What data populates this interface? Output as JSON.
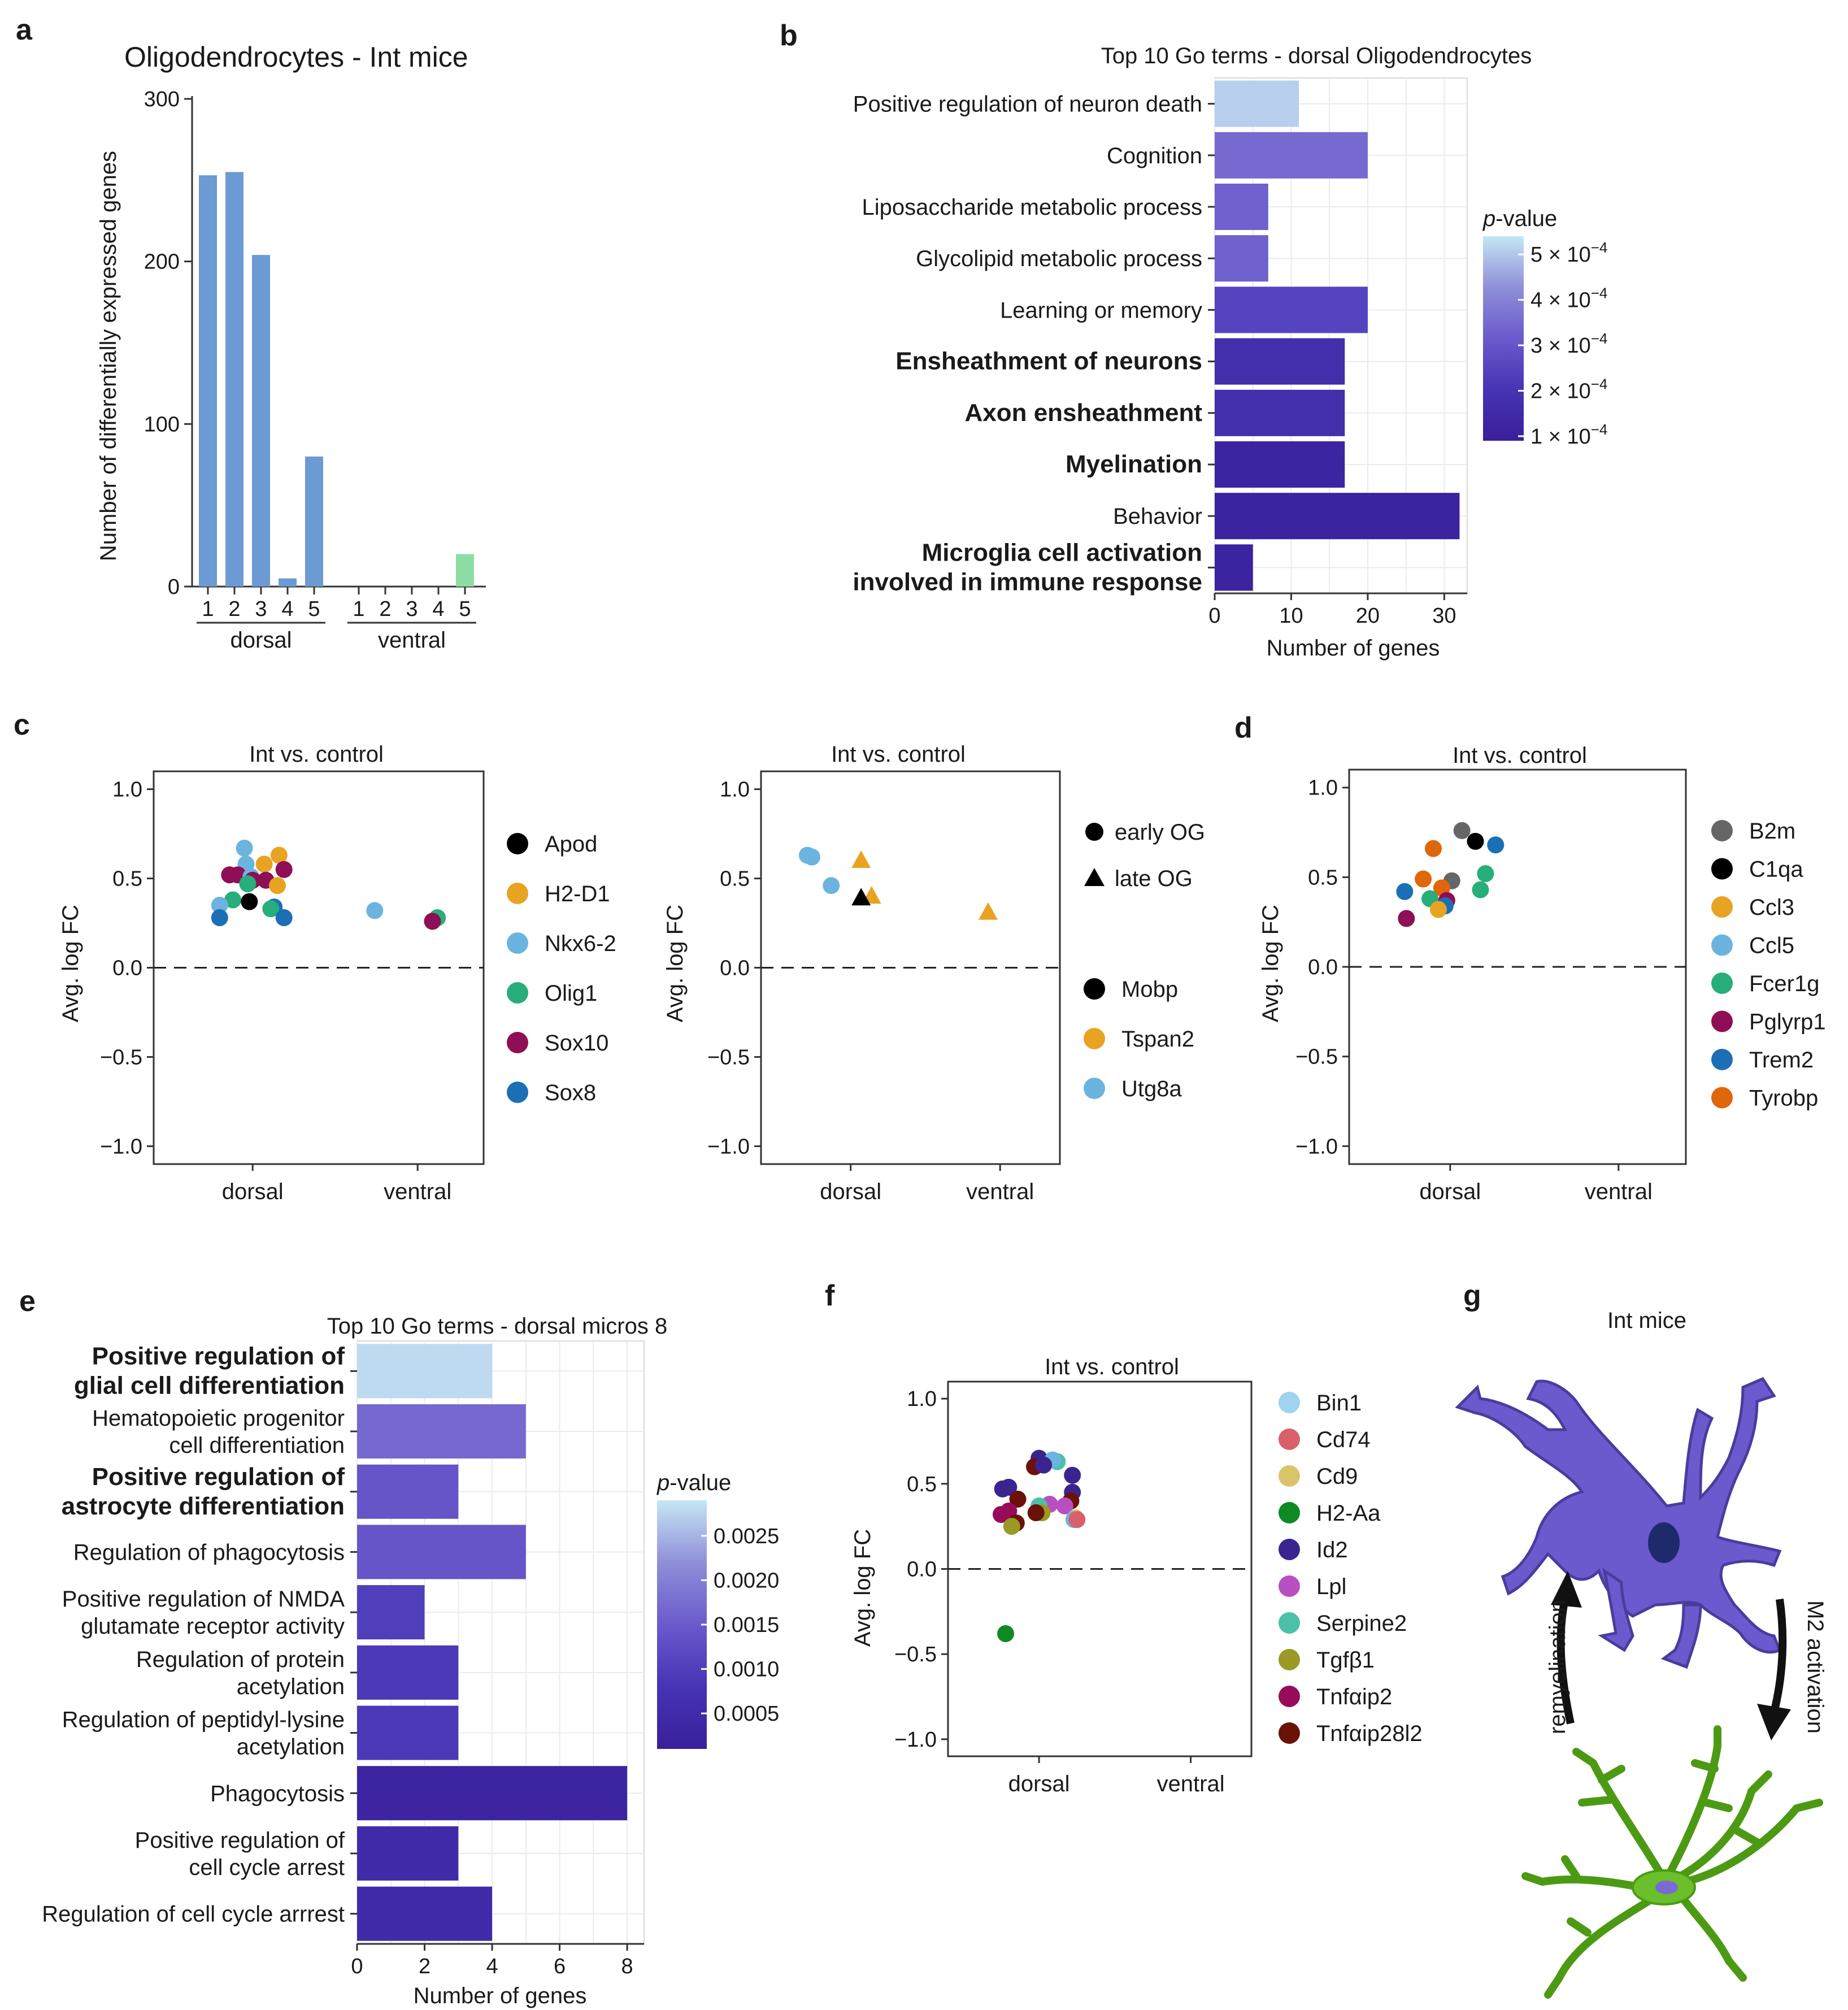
{
  "panel_letters": [
    "a",
    "b",
    "c",
    "d",
    "e",
    "f",
    "g"
  ],
  "chart_data": [
    {
      "id": "a",
      "type": "bar",
      "title": "Oligodendrocytes - Int mice",
      "ylabel": "Number of differentially expressed genes",
      "ylim": [
        0,
        300
      ],
      "yticks": [
        0,
        100,
        200,
        300
      ],
      "groups": [
        {
          "name": "dorsal",
          "categories": [
            "1",
            "2",
            "3",
            "4",
            "5"
          ],
          "values": [
            253,
            255,
            204,
            5,
            80
          ],
          "colors": [
            "#6b9bd2",
            "#6b9bd2",
            "#6b9bd2",
            "#6b9bd2",
            "#6b9bd2"
          ]
        },
        {
          "name": "ventral",
          "categories": [
            "1",
            "2",
            "3",
            "4",
            "5"
          ],
          "values": [
            0,
            0,
            0,
            0,
            20
          ],
          "colors": [
            "#6b9bd2",
            "#6b9bd2",
            "#6b9bd2",
            "#6b9bd2",
            "#8ddca4"
          ]
        }
      ]
    },
    {
      "id": "b",
      "type": "bar",
      "orientation": "horizontal",
      "title": "Top 10 Go terms - dorsal Oligodendrocytes",
      "xlabel": "Number of genes",
      "xlim": [
        0,
        33
      ],
      "xticks": [
        0,
        10,
        20,
        30
      ],
      "categories": [
        {
          "label": "Positive regulation of neuron death",
          "bold": false
        },
        {
          "label": "Cognition",
          "bold": false
        },
        {
          "label": "Liposaccharide metabolic process",
          "bold": false
        },
        {
          "label": "Glycolipid metabolic process",
          "bold": false
        },
        {
          "label": "Learning or memory",
          "bold": false
        },
        {
          "label": "Ensheathment of neurons",
          "bold": true
        },
        {
          "label": "Axon ensheathment",
          "bold": true
        },
        {
          "label": "Myelination",
          "bold": true
        },
        {
          "label": "Behavior",
          "bold": false
        },
        {
          "label": [
            "Microglia cell activation",
            "involved in immune response"
          ],
          "bold": true
        }
      ],
      "values": [
        11,
        20,
        7,
        7,
        20,
        17,
        17,
        17,
        32,
        5
      ],
      "pvalues": [
        0.00051,
        0.00035,
        0.00033,
        0.00033,
        0.00025,
        0.00017,
        0.00017,
        0.00012,
        0.00011,
        0.00011
      ],
      "colorbar": {
        "title": "p-value",
        "ticks": [
          "5",
          "4",
          "3",
          "2",
          "1"
        ],
        "tick_values": [
          0.0005,
          0.0004,
          0.0003,
          0.0002,
          0.0001
        ],
        "tick_suffix": "× 10",
        "exponent": "−4",
        "range": [
          9e-05,
          0.00054
        ]
      }
    },
    {
      "id": "c1",
      "type": "scatter",
      "title": "Int vs. control",
      "ylabel": "Avg. log FC",
      "ylim": [
        -1.1,
        1.1
      ],
      "yticks": [
        "1.0",
        "0.5",
        "0.0",
        "−0.5",
        "−1.0"
      ],
      "ytick_values": [
        1.0,
        0.5,
        0.0,
        -0.5,
        -1.0
      ],
      "categories": [
        "dorsal",
        "ventral"
      ],
      "legend": [
        {
          "label": "Apod",
          "color": "#000000"
        },
        {
          "label": "H2-D1",
          "color": "#e9a322"
        },
        {
          "label": "Nkx6-2",
          "color": "#6cb4e0"
        },
        {
          "label": "Olig1",
          "color": "#27ae7a"
        },
        {
          "label": "Sox10",
          "color": "#8e0f55"
        },
        {
          "label": "Sox8",
          "color": "#1b6fb5"
        }
      ],
      "points": [
        {
          "x": 0.95,
          "y": 0.67,
          "c": "#6cb4e0",
          "s": "c"
        },
        {
          "x": 1.16,
          "y": 0.63,
          "c": "#e9a322",
          "s": "c"
        },
        {
          "x": 0.96,
          "y": 0.58,
          "c": "#6cb4e0",
          "s": "c"
        },
        {
          "x": 1.07,
          "y": 0.58,
          "c": "#e9a322",
          "s": "c"
        },
        {
          "x": 1.19,
          "y": 0.55,
          "c": "#8e0f55",
          "s": "c"
        },
        {
          "x": 0.86,
          "y": 0.52,
          "c": "#8e0f55",
          "s": "c"
        },
        {
          "x": 0.91,
          "y": 0.52,
          "c": "#8e0f55",
          "s": "c"
        },
        {
          "x": 0.99,
          "y": 0.51,
          "c": "#6cb4e0",
          "s": "c"
        },
        {
          "x": 1.0,
          "y": 0.49,
          "c": "#8e0f55",
          "s": "c"
        },
        {
          "x": 1.08,
          "y": 0.49,
          "c": "#8e0f55",
          "s": "c"
        },
        {
          "x": 0.97,
          "y": 0.47,
          "c": "#27ae7a",
          "s": "c"
        },
        {
          "x": 1.15,
          "y": 0.46,
          "c": "#e9a322",
          "s": "c"
        },
        {
          "x": 0.88,
          "y": 0.38,
          "c": "#27ae7a",
          "s": "c"
        },
        {
          "x": 0.8,
          "y": 0.35,
          "c": "#6cb4e0",
          "s": "c"
        },
        {
          "x": 0.98,
          "y": 0.37,
          "c": "#000000",
          "s": "c"
        },
        {
          "x": 1.13,
          "y": 0.34,
          "c": "#1b6fb5",
          "s": "c"
        },
        {
          "x": 1.11,
          "y": 0.33,
          "c": "#27ae7a",
          "s": "c"
        },
        {
          "x": 0.8,
          "y": 0.28,
          "c": "#1b6fb5",
          "s": "c"
        },
        {
          "x": 1.19,
          "y": 0.28,
          "c": "#1b6fb5",
          "s": "c"
        },
        {
          "x": 1.74,
          "y": 0.32,
          "c": "#6cb4e0",
          "s": "c"
        },
        {
          "x": 2.12,
          "y": 0.28,
          "c": "#27ae7a",
          "s": "c"
        },
        {
          "x": 2.09,
          "y": 0.26,
          "c": "#8e0f55",
          "s": "c"
        }
      ]
    },
    {
      "id": "c2",
      "type": "scatter",
      "title": "Int vs. control",
      "ylabel": "Avg. log FC",
      "ylim": [
        -1.1,
        1.1
      ],
      "yticks": [
        "1.0",
        "0.5",
        "0.0",
        "−0.5",
        "−1.0"
      ],
      "ytick_values": [
        1.0,
        0.5,
        0.0,
        -0.5,
        -1.0
      ],
      "categories": [
        "dorsal",
        "ventral"
      ],
      "shape_legend": [
        {
          "label": "early OG",
          "shape": "circle"
        },
        {
          "label": "late OG",
          "shape": "triangle"
        }
      ],
      "legend": [
        {
          "label": "Mobp",
          "color": "#000000"
        },
        {
          "label": "Tspan2",
          "color": "#e9a322"
        },
        {
          "label": "Utg8a",
          "color": "#6cb4e0"
        }
      ],
      "points": [
        {
          "x": 0.71,
          "y": 0.63,
          "c": "#6cb4e0",
          "s": "c"
        },
        {
          "x": 0.74,
          "y": 0.62,
          "c": "#6cb4e0",
          "s": "c"
        },
        {
          "x": 0.87,
          "y": 0.46,
          "c": "#6cb4e0",
          "s": "c"
        },
        {
          "x": 1.07,
          "y": 0.6,
          "c": "#e9a322",
          "s": "t"
        },
        {
          "x": 1.14,
          "y": 0.4,
          "c": "#e9a322",
          "s": "t"
        },
        {
          "x": 1.07,
          "y": 0.39,
          "c": "#000000",
          "s": "t"
        },
        {
          "x": 1.92,
          "y": 0.31,
          "c": "#e9a322",
          "s": "t"
        }
      ]
    },
    {
      "id": "d",
      "type": "scatter",
      "title": "Int vs. control",
      "ylabel": "Avg. log FC",
      "ylim": [
        -1.1,
        1.1
      ],
      "yticks": [
        "1.0",
        "0.5",
        "0.0",
        "−0.5",
        "−1.0"
      ],
      "ytick_values": [
        1.0,
        0.5,
        0.0,
        -0.5,
        -1.0
      ],
      "categories": [
        "dorsal",
        "ventral"
      ],
      "legend": [
        {
          "label": "B2m",
          "color": "#666666"
        },
        {
          "label": "C1qa",
          "color": "#000000"
        },
        {
          "label": "Ccl3",
          "color": "#e9a322"
        },
        {
          "label": "Ccl5",
          "color": "#6cb4e0"
        },
        {
          "label": "Fcer1g",
          "color": "#27ae7a"
        },
        {
          "label": "Pglyrp1",
          "color": "#8e0f55"
        },
        {
          "label": "Trem2",
          "color": "#1b6fb5"
        },
        {
          "label": "Tyrobp",
          "color": "#e0660a"
        }
      ],
      "points": [
        {
          "x": 1.07,
          "y": 0.76,
          "c": "#666666",
          "s": "c"
        },
        {
          "x": 1.15,
          "y": 0.7,
          "c": "#000000",
          "s": "c"
        },
        {
          "x": 1.27,
          "y": 0.68,
          "c": "#1b6fb5",
          "s": "c"
        },
        {
          "x": 0.9,
          "y": 0.66,
          "c": "#e0660a",
          "s": "c"
        },
        {
          "x": 1.21,
          "y": 0.52,
          "c": "#27ae7a",
          "s": "c"
        },
        {
          "x": 0.84,
          "y": 0.49,
          "c": "#e0660a",
          "s": "c"
        },
        {
          "x": 1.01,
          "y": 0.48,
          "c": "#666666",
          "s": "c"
        },
        {
          "x": 0.95,
          "y": 0.44,
          "c": "#e0660a",
          "s": "c"
        },
        {
          "x": 1.18,
          "y": 0.43,
          "c": "#27ae7a",
          "s": "c"
        },
        {
          "x": 0.73,
          "y": 0.42,
          "c": "#1b6fb5",
          "s": "c"
        },
        {
          "x": 0.88,
          "y": 0.38,
          "c": "#27ae7a",
          "s": "c"
        },
        {
          "x": 0.98,
          "y": 0.37,
          "c": "#8e0f55",
          "s": "c"
        },
        {
          "x": 0.97,
          "y": 0.34,
          "c": "#1b6fb5",
          "s": "c"
        },
        {
          "x": 0.93,
          "y": 0.32,
          "c": "#e9a322",
          "s": "c"
        },
        {
          "x": 0.74,
          "y": 0.27,
          "c": "#8e0f55",
          "s": "c"
        }
      ]
    },
    {
      "id": "e",
      "type": "bar",
      "orientation": "horizontal",
      "title": "Top 10 Go terms - dorsal micros 8",
      "xlabel": "Number of genes",
      "xlim": [
        0,
        8.5
      ],
      "xticks": [
        0,
        2,
        4,
        6,
        8
      ],
      "categories": [
        {
          "label": [
            "Positive regulation of",
            "glial cell differentiation"
          ],
          "bold": true
        },
        {
          "label": [
            "Hematopoietic progenitor",
            "cell differentiation"
          ],
          "bold": false
        },
        {
          "label": [
            "Positive regulation of",
            "astrocyte differentiation"
          ],
          "bold": true
        },
        {
          "label": "Regulation of phagocytosis",
          "bold": false
        },
        {
          "label": [
            "Positive regulation of NMDA",
            "glutamate receptor activity"
          ],
          "bold": false
        },
        {
          "label": [
            "Regulation of protein",
            "acetylation"
          ],
          "bold": false
        },
        {
          "label": [
            "Regulation of peptidyl-lysine",
            "acetylation"
          ],
          "bold": false
        },
        {
          "label": "Phagocytosis",
          "bold": false
        },
        {
          "label": [
            "Positive regulation of",
            "cell cycle arrest"
          ],
          "bold": false
        },
        {
          "label": "Regulation of cell cycle arrrest",
          "bold": false
        }
      ],
      "values": [
        4,
        5,
        3,
        5,
        2,
        3,
        3,
        8,
        3,
        4
      ],
      "pvalues": [
        0.0028,
        0.0017,
        0.0014,
        0.0014,
        0.001,
        0.0009,
        0.0009,
        0.00025,
        0.0005,
        0.0005
      ],
      "colorbar": {
        "title": "p-value",
        "ticks": [
          "0.0025",
          "0.0020",
          "0.0015",
          "0.0010",
          "0.0005"
        ],
        "tick_values": [
          0.0025,
          0.002,
          0.0015,
          0.001,
          0.0005
        ],
        "range": [
          0.0001,
          0.0029
        ]
      }
    },
    {
      "id": "f",
      "type": "scatter",
      "title": "Int vs. control",
      "ylabel": "Avg. log FC",
      "ylim": [
        -1.1,
        1.1
      ],
      "yticks": [
        "1.0",
        "0.5",
        "0.0",
        "−0.5",
        "−1.0"
      ],
      "ytick_values": [
        1.0,
        0.5,
        0.0,
        -0.5,
        -1.0
      ],
      "categories": [
        "dorsal",
        "ventral"
      ],
      "legend": [
        {
          "label": "Bin1",
          "color": "#9fd3ef"
        },
        {
          "label": "Cd74",
          "color": "#d9606a"
        },
        {
          "label": "Cd9",
          "color": "#d9c46a"
        },
        {
          "label": "H2-Aa",
          "color": "#0e8a22"
        },
        {
          "label": "Id2",
          "color": "#3a2590"
        },
        {
          "label": "Lpl",
          "color": "#b84fc0"
        },
        {
          "label": "Serpine2",
          "color": "#4cc0a8"
        },
        {
          "label": "Tgfβ1",
          "color": "#9a9a24"
        },
        {
          "label": "Tnfαip2",
          "color": "#960c5a"
        },
        {
          "label": "Tnfαip28l2",
          "color": "#6a1208"
        }
      ],
      "points": [
        {
          "x": 1.0,
          "y": 0.65,
          "c": "#3a2590",
          "s": "c"
        },
        {
          "x": 1.12,
          "y": 0.63,
          "c": "#4cc0a8",
          "s": "c"
        },
        {
          "x": 1.09,
          "y": 0.64,
          "c": "#6cb4e0",
          "s": "c"
        },
        {
          "x": 0.97,
          "y": 0.6,
          "c": "#6a1208",
          "s": "c"
        },
        {
          "x": 1.03,
          "y": 0.61,
          "c": "#3a2590",
          "s": "c"
        },
        {
          "x": 1.22,
          "y": 0.55,
          "c": "#3a2590",
          "s": "c"
        },
        {
          "x": 0.76,
          "y": 0.47,
          "c": "#3a2590",
          "s": "c"
        },
        {
          "x": 0.8,
          "y": 0.48,
          "c": "#3a2590",
          "s": "c"
        },
        {
          "x": 1.22,
          "y": 0.45,
          "c": "#3a2590",
          "s": "c"
        },
        {
          "x": 0.86,
          "y": 0.41,
          "c": "#6a1208",
          "s": "c"
        },
        {
          "x": 1.21,
          "y": 0.4,
          "c": "#6a1208",
          "s": "c"
        },
        {
          "x": 1.07,
          "y": 0.38,
          "c": "#b84fc0",
          "s": "c"
        },
        {
          "x": 1.0,
          "y": 0.37,
          "c": "#4cc0a8",
          "s": "c"
        },
        {
          "x": 1.17,
          "y": 0.37,
          "c": "#b84fc0",
          "s": "c"
        },
        {
          "x": 1.02,
          "y": 0.33,
          "c": "#9a9a24",
          "s": "c"
        },
        {
          "x": 0.98,
          "y": 0.33,
          "c": "#6a1208",
          "s": "c"
        },
        {
          "x": 0.75,
          "y": 0.32,
          "c": "#960c5a",
          "s": "c"
        },
        {
          "x": 0.8,
          "y": 0.34,
          "c": "#960c5a",
          "s": "c"
        },
        {
          "x": 1.24,
          "y": 0.3,
          "c": "#d9c46a",
          "s": "c"
        },
        {
          "x": 1.23,
          "y": 0.29,
          "c": "#6cb4e0",
          "s": "c"
        },
        {
          "x": 1.25,
          "y": 0.29,
          "c": "#d9606a",
          "s": "c"
        },
        {
          "x": 0.85,
          "y": 0.27,
          "c": "#6a1208",
          "s": "c"
        },
        {
          "x": 0.82,
          "y": 0.25,
          "c": "#9a9a24",
          "s": "c"
        },
        {
          "x": 0.78,
          "y": -0.38,
          "c": "#0e8a22",
          "s": "c"
        }
      ]
    }
  ],
  "panel_g": {
    "title": "Int mice",
    "left_arrow_label": "remyelination",
    "right_arrow_label": "M2 activation",
    "colors": {
      "oligodendrocyte": "#6a5acd",
      "oligodendrocyte_edge": "#4a3c9e",
      "nucleus": "#1f2a6b",
      "microglia": "#6abf2a",
      "microglia_edge": "#4c9a14",
      "microglia_nucleus": "#7a6ad6"
    }
  }
}
